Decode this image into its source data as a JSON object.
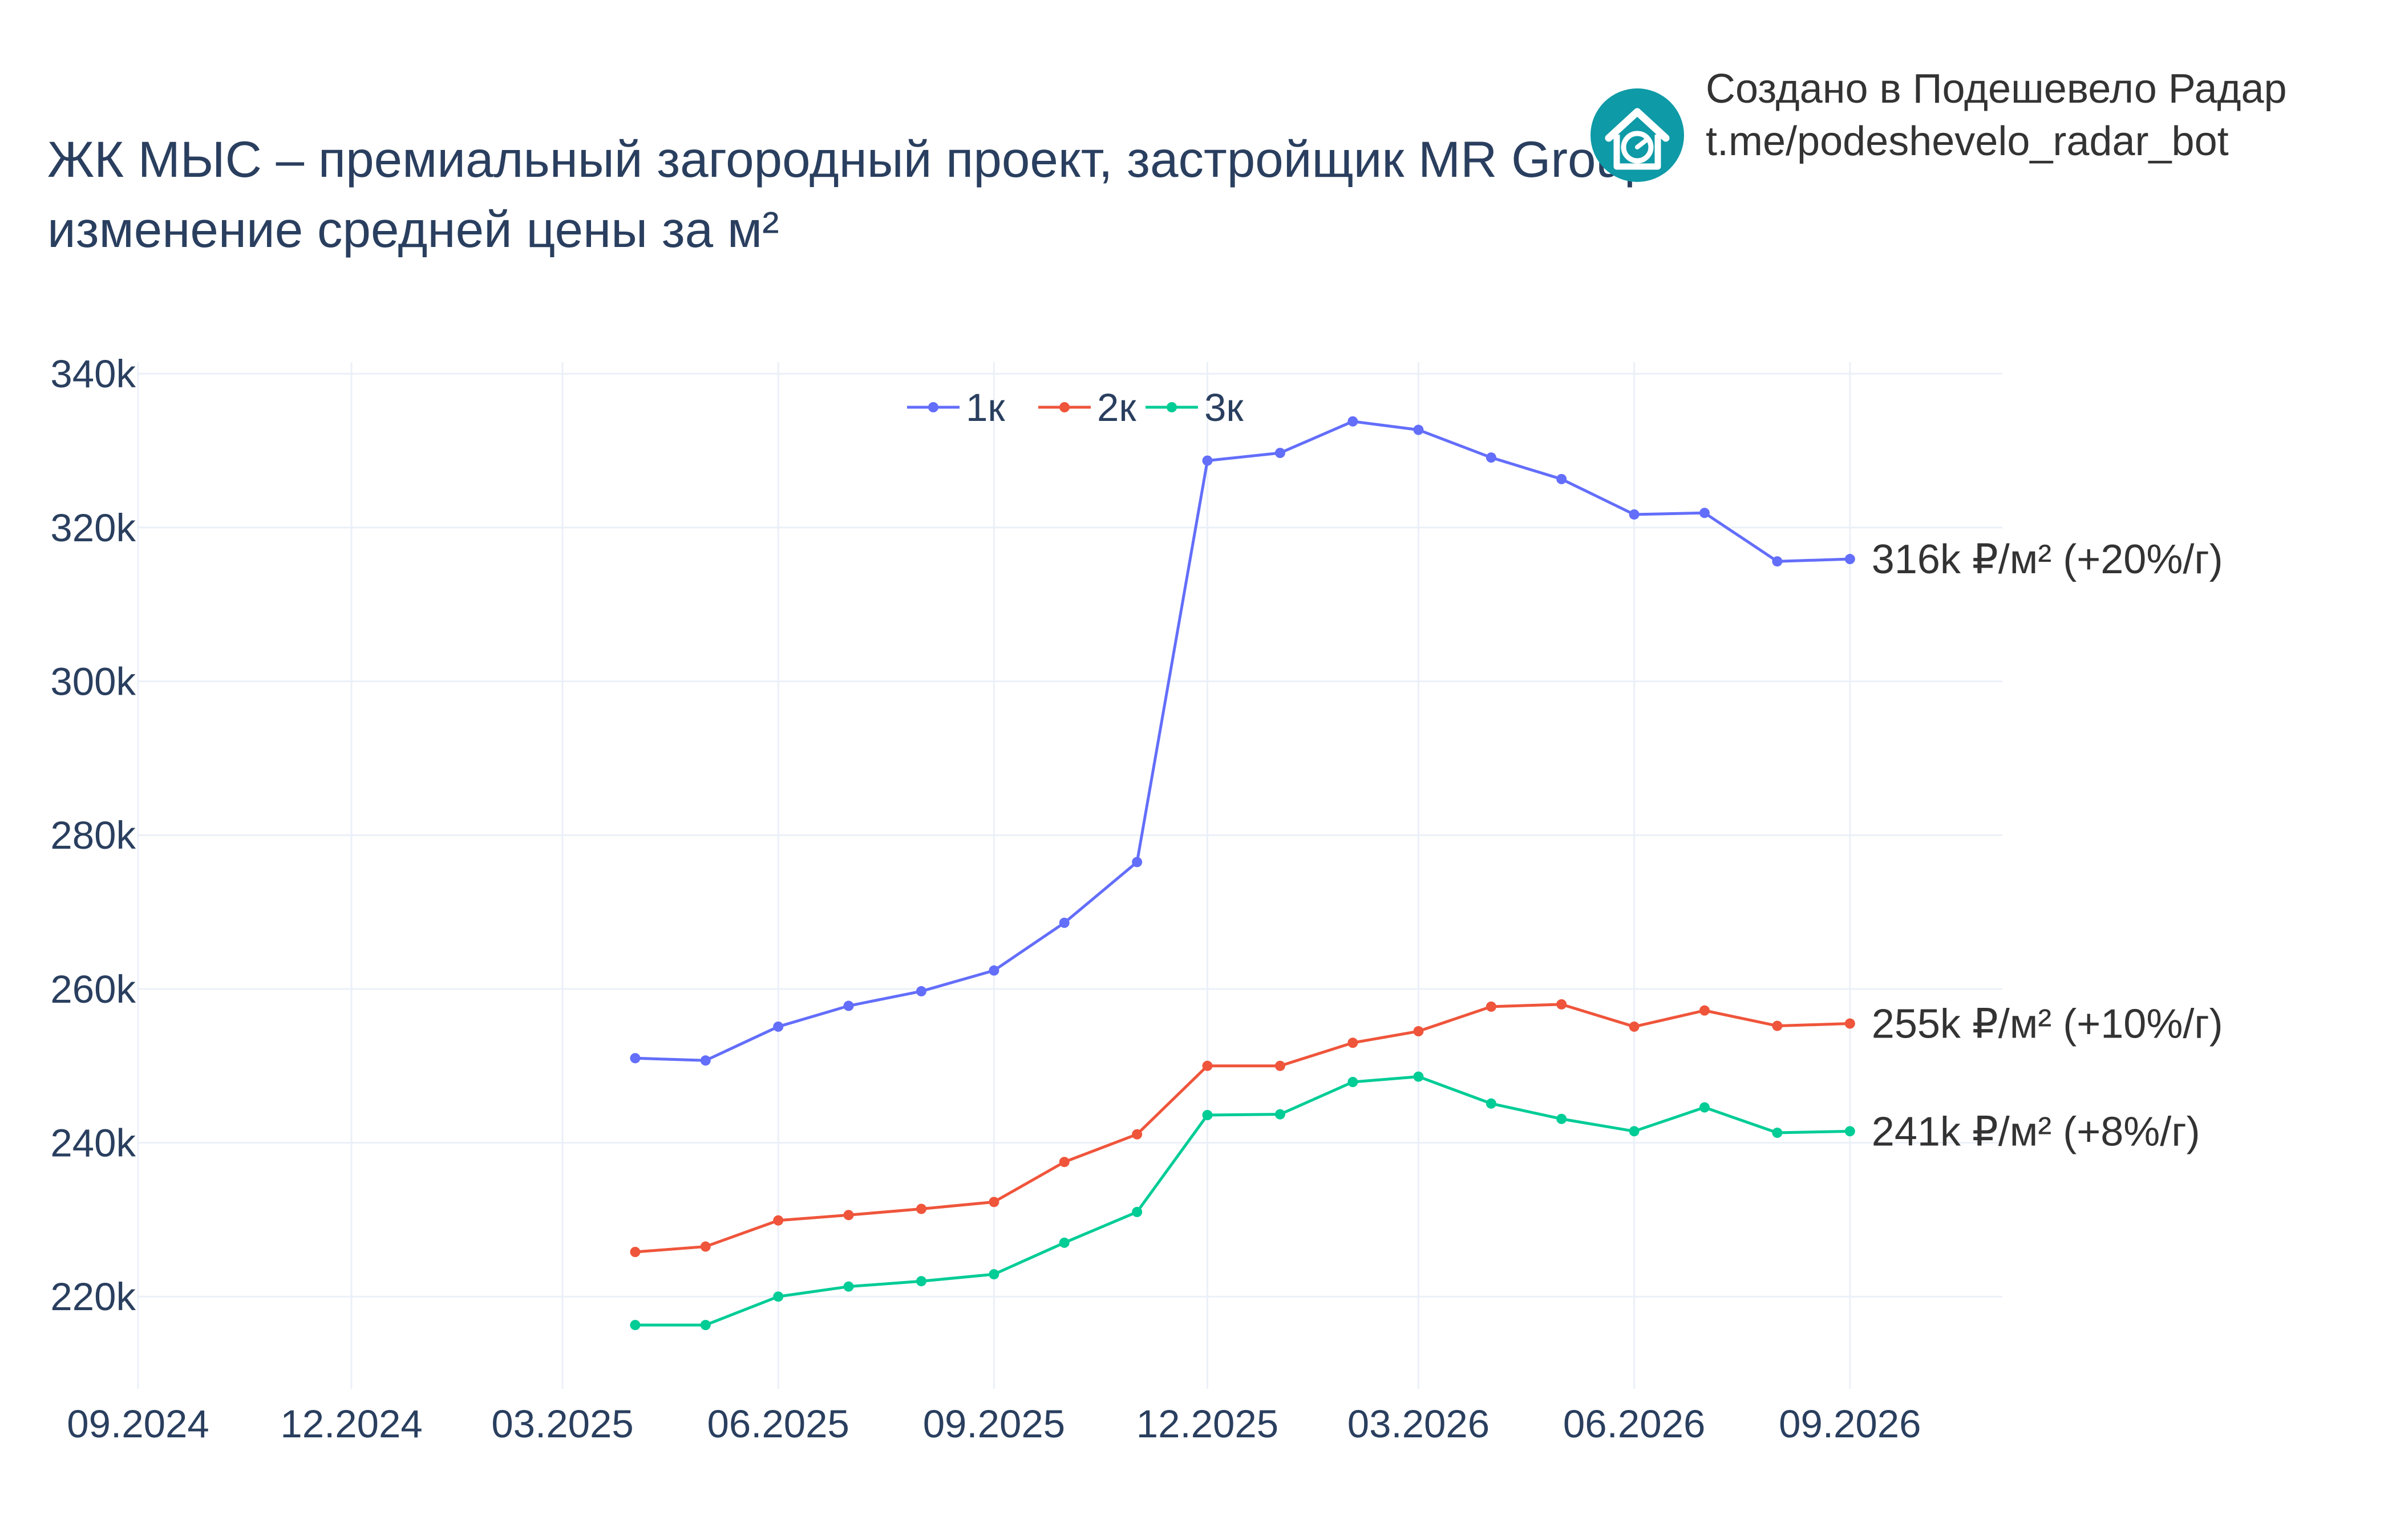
{
  "credit": {
    "line1": "Создано в Подешевело Радар",
    "line2": "t.me/podeshevelo_radar_bot",
    "logo_icon": "house-chart-logo-icon",
    "logo_color": "#0e9aa7"
  },
  "chart_data": {
    "type": "line",
    "title": "ЖК МЫС – премиальный загородный проект, застройщик MR Group",
    "subtitle": "изменение средней цены за м²",
    "xlabel": "",
    "ylabel": "",
    "x_axis": {
      "type": "date",
      "range": [
        "2024-09-01",
        "2026-11-05"
      ],
      "ticks": [
        "2024-09-01",
        "2024-12-01",
        "2025-03-01",
        "2025-06-01",
        "2025-09-01",
        "2025-12-01",
        "2026-03-01",
        "2026-06-01",
        "2026-09-01"
      ],
      "tick_labels": [
        "09.2024",
        "12.2024",
        "03.2025",
        "06.2025",
        "09.2025",
        "12.2025",
        "03.2026",
        "06.2026",
        "09.2026"
      ]
    },
    "y_axis": {
      "range": [
        208000,
        341500
      ],
      "ticks": [
        220000,
        240000,
        260000,
        280000,
        300000,
        320000,
        340000
      ],
      "tick_labels": [
        "220k",
        "240k",
        "260k",
        "280k",
        "300k",
        "320k",
        "340k"
      ]
    },
    "grid": true,
    "legend": {
      "position": "top-center",
      "orientation": "horizontal"
    },
    "x": [
      "2025-04-01",
      "2025-05-01",
      "2025-06-01",
      "2025-07-01",
      "2025-08-01",
      "2025-09-01",
      "2025-10-01",
      "2025-11-01",
      "2025-12-01",
      "2026-01-01",
      "2026-02-01",
      "2026-03-01",
      "2026-04-01",
      "2026-05-01",
      "2026-06-01",
      "2026-07-01",
      "2026-08-01",
      "2026-09-01"
    ],
    "series": [
      {
        "name": "1к",
        "color": "#636efa",
        "values": [
          251000,
          250700,
          255100,
          257800,
          259700,
          262400,
          268600,
          276500,
          328700,
          329700,
          333800,
          332700,
          329100,
          326300,
          321700,
          321900,
          315600,
          315900
        ],
        "end_label": "316k ₽/м² (+20%/г)"
      },
      {
        "name": "2к",
        "color": "#ef553b",
        "values": [
          225800,
          226500,
          229900,
          230600,
          231400,
          232300,
          237500,
          241100,
          250000,
          250000,
          253000,
          254500,
          257700,
          258000,
          255100,
          257200,
          255200,
          255500
        ],
        "end_label": "255k ₽/м² (+10%/г)"
      },
      {
        "name": "3к",
        "color": "#00cc96",
        "values": [
          216300,
          216300,
          220000,
          221300,
          222000,
          222900,
          227000,
          231000,
          243600,
          243700,
          247900,
          248600,
          245100,
          243100,
          241500,
          244600,
          241300,
          241500
        ],
        "end_label": "241k ₽/м² (+8%/г)"
      }
    ]
  }
}
